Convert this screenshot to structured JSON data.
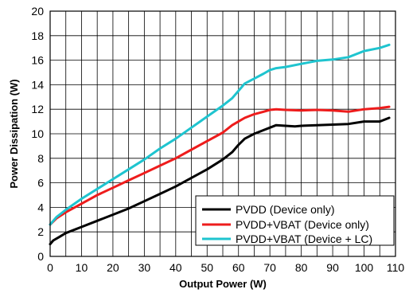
{
  "chart_data": {
    "type": "line",
    "xlabel": "Output Power (W)",
    "ylabel": "Power Dissipation (W)",
    "xlim": [
      0,
      110
    ],
    "ylim": [
      0,
      20
    ],
    "xticks": [
      0,
      10,
      20,
      30,
      40,
      50,
      60,
      70,
      80,
      90,
      100,
      110
    ],
    "yticks": [
      0,
      2,
      4,
      6,
      8,
      10,
      12,
      14,
      16,
      18,
      20
    ],
    "grid": true,
    "legend_position": "bottom-right",
    "series": [
      {
        "name": "PVDD (Device only)",
        "color": "#000000",
        "x": [
          0,
          1,
          3,
          5,
          10,
          15,
          20,
          25,
          30,
          35,
          40,
          45,
          50,
          55,
          58,
          60,
          62,
          65,
          68,
          70,
          72,
          75,
          78,
          80,
          85,
          90,
          95,
          100,
          102,
          105,
          108
        ],
        "y": [
          1.0,
          1.3,
          1.6,
          1.9,
          2.4,
          2.9,
          3.4,
          3.9,
          4.5,
          5.1,
          5.7,
          6.4,
          7.1,
          7.9,
          8.5,
          9.1,
          9.6,
          10.0,
          10.3,
          10.5,
          10.7,
          10.65,
          10.6,
          10.65,
          10.7,
          10.75,
          10.8,
          11.0,
          11.0,
          11.0,
          11.3
        ]
      },
      {
        "name": "PVDD+VBAT (Device only)",
        "color": "#ee1c1c",
        "x": [
          0,
          2,
          5,
          10,
          15,
          20,
          25,
          30,
          35,
          40,
          45,
          50,
          55,
          58,
          60,
          62,
          65,
          68,
          70,
          72,
          75,
          80,
          85,
          90,
          95,
          100,
          105,
          108
        ],
        "y": [
          2.6,
          3.1,
          3.6,
          4.3,
          5.0,
          5.6,
          6.2,
          6.8,
          7.4,
          8.0,
          8.7,
          9.4,
          10.1,
          10.7,
          11.0,
          11.3,
          11.6,
          11.8,
          11.95,
          12.0,
          11.95,
          11.9,
          11.95,
          11.9,
          11.8,
          12.0,
          12.1,
          12.2
        ]
      },
      {
        "name": "PVDD+VBAT (Device + LC)",
        "color": "#1fc4cf",
        "x": [
          0,
          2,
          5,
          10,
          15,
          20,
          25,
          30,
          35,
          40,
          45,
          50,
          55,
          58,
          60,
          62,
          65,
          68,
          70,
          72,
          75,
          80,
          85,
          90,
          95,
          100,
          105,
          108
        ],
        "y": [
          2.6,
          3.2,
          3.8,
          4.7,
          5.5,
          6.3,
          7.1,
          7.9,
          8.8,
          9.6,
          10.5,
          11.4,
          12.3,
          12.9,
          13.5,
          14.1,
          14.5,
          14.9,
          15.2,
          15.35,
          15.45,
          15.7,
          15.95,
          16.05,
          16.25,
          16.75,
          17.0,
          17.25
        ]
      }
    ]
  }
}
